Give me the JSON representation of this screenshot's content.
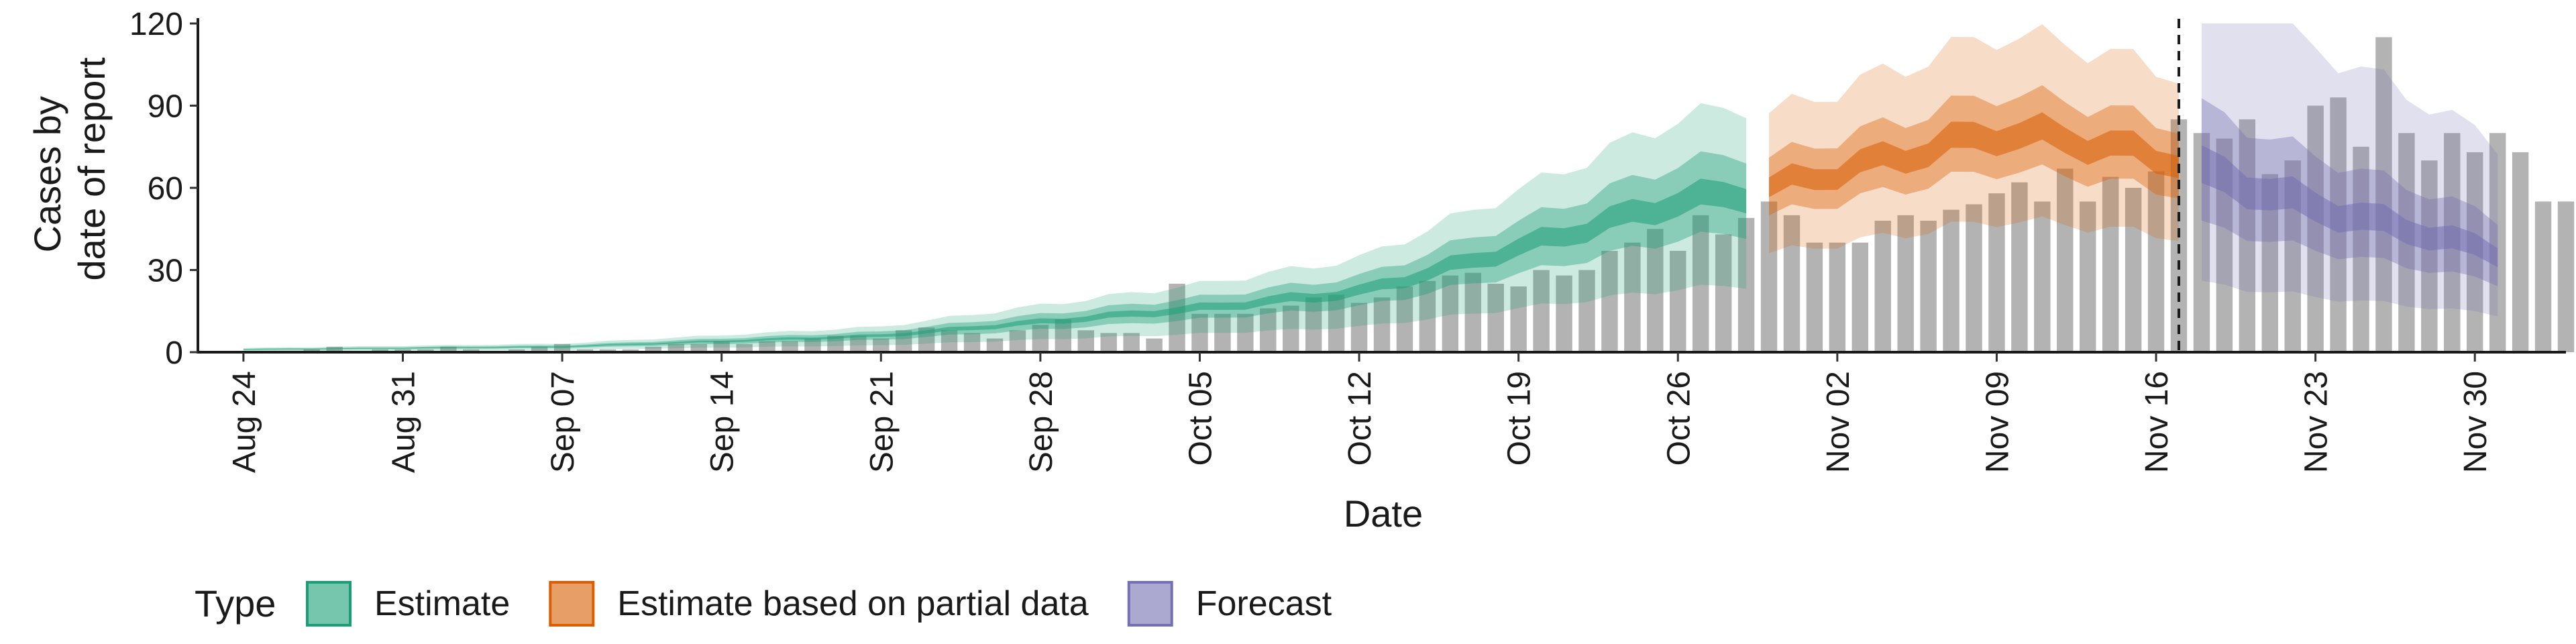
{
  "chart_data": {
    "type": "bar",
    "xlabel": "Date",
    "ylabel_lines": [
      "Cases by",
      "date of report"
    ],
    "ylim": [
      0,
      120
    ],
    "yticks": [
      0,
      30,
      60,
      90,
      120
    ],
    "x_date_range": [
      "2020-08-22",
      "2020-12-04"
    ],
    "xticks": [
      {
        "date": "2020-08-24",
        "label": "Aug 24"
      },
      {
        "date": "2020-08-31",
        "label": "Aug 31"
      },
      {
        "date": "2020-09-07",
        "label": "Sep 07"
      },
      {
        "date": "2020-09-14",
        "label": "Sep 14"
      },
      {
        "date": "2020-09-21",
        "label": "Sep 21"
      },
      {
        "date": "2020-09-28",
        "label": "Sep 28"
      },
      {
        "date": "2020-10-05",
        "label": "Oct 05"
      },
      {
        "date": "2020-10-12",
        "label": "Oct 12"
      },
      {
        "date": "2020-10-19",
        "label": "Oct 19"
      },
      {
        "date": "2020-10-26",
        "label": "Oct 26"
      },
      {
        "date": "2020-11-02",
        "label": "Nov 02"
      },
      {
        "date": "2020-11-09",
        "label": "Nov 09"
      },
      {
        "date": "2020-11-16",
        "label": "Nov 16"
      },
      {
        "date": "2020-11-23",
        "label": "Nov 23"
      },
      {
        "date": "2020-11-30",
        "label": "Nov 30"
      }
    ],
    "reported_cases": {
      "start_date": "2020-08-25",
      "color": "#b3b3b3",
      "values": [
        0,
        0,
        1,
        2,
        0,
        1,
        1,
        1,
        2,
        1,
        0,
        1,
        2,
        3,
        1,
        1,
        1,
        2,
        3,
        3,
        4,
        3,
        4,
        4,
        5,
        6,
        6,
        5,
        8,
        9,
        8,
        7,
        5,
        8,
        10,
        12,
        8,
        7,
        7,
        5,
        25,
        14,
        14,
        14,
        16,
        17,
        20,
        21,
        18,
        20,
        24,
        26,
        28,
        29,
        25,
        24,
        30,
        28,
        30,
        37,
        40,
        45,
        37,
        50,
        43,
        49,
        55,
        50,
        40,
        40,
        40,
        48,
        50,
        48,
        52,
        54,
        58,
        62,
        55,
        67,
        55,
        64,
        60,
        66,
        85,
        80,
        78,
        85,
        65,
        70,
        90,
        93,
        75,
        115,
        80,
        70,
        80,
        73,
        80,
        73,
        55,
        55,
        57
      ]
    },
    "estimate": {
      "start_date": "2020-08-24",
      "end_date": "2020-10-29",
      "color": "#1b9e77",
      "median_knots": [
        [
          "2020-08-24",
          1
        ],
        [
          "2020-09-07",
          2
        ],
        [
          "2020-09-21",
          6
        ],
        [
          "2020-10-05",
          16
        ],
        [
          "2020-10-12",
          22
        ],
        [
          "2020-10-19",
          38
        ],
        [
          "2020-10-26",
          55
        ],
        [
          "2020-10-29",
          58
        ]
      ],
      "band_90_rel": [
        0.42,
        1.55
      ],
      "band_50_rel": [
        0.75,
        1.25
      ],
      "band_20_rel": [
        0.92,
        1.08
      ]
    },
    "estimate_partial": {
      "start_date": "2020-10-30",
      "end_date": "2020-11-17",
      "color": "#d95f02",
      "median_knots": [
        [
          "2020-10-30",
          60
        ],
        [
          "2020-11-02",
          66
        ],
        [
          "2020-11-09",
          80
        ],
        [
          "2020-11-12",
          78
        ],
        [
          "2020-11-17",
          70
        ]
      ],
      "band_90_rel": [
        0.6,
        1.45
      ],
      "band_50_rel": [
        0.83,
        1.18
      ],
      "band_20_rel": [
        0.94,
        1.06
      ]
    },
    "forecast": {
      "start_date": "2020-11-18",
      "end_date": "2020-12-01",
      "color": "#7570b3",
      "median_knots": [
        [
          "2020-11-18",
          66
        ],
        [
          "2020-11-23",
          53
        ],
        [
          "2020-11-28",
          43
        ],
        [
          "2020-12-01",
          36
        ]
      ],
      "band_90_rel": [
        0.38,
        2.1
      ],
      "band_50_rel": [
        0.7,
        1.35
      ],
      "band_20_rel": [
        0.9,
        1.1
      ]
    },
    "vline_date": "2020-11-17",
    "legend": {
      "title": "Type",
      "position": "bottom-left",
      "items": [
        {
          "label": "Estimate",
          "color": "#1b9e77"
        },
        {
          "label": "Estimate based on partial data",
          "color": "#d95f02"
        },
        {
          "label": "Forecast",
          "color": "#7570b3"
        }
      ]
    }
  }
}
